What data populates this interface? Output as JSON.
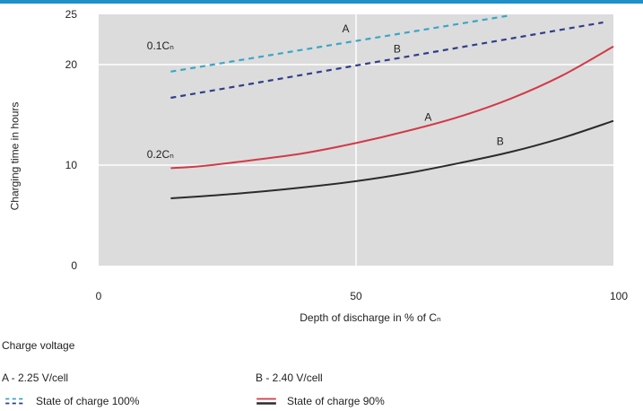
{
  "colors": {
    "top_band": "#1f8fc9",
    "plot_bg": "#dcdcdc",
    "grid": "#ffffff",
    "dashed_a": "#3aa6c8",
    "dashed_b": "#2f3e8c",
    "solid_a": "#d23a48",
    "solid_b": "#2b2b2b"
  },
  "chart_data": {
    "type": "line",
    "xlabel": "Depth of discharge in % of Cₙ",
    "ylabel": "Charging time in hours",
    "xlim": [
      0,
      100
    ],
    "ylim": [
      0,
      25
    ],
    "xticks": [
      "0",
      "50",
      "100"
    ],
    "yticks": [
      "0",
      "10",
      "20",
      "25"
    ],
    "grid": true,
    "series": [
      {
        "group": "0.1Cₙ",
        "name": "A",
        "style": "dashed",
        "color": "#3aa6c8",
        "x": [
          14,
          80
        ],
        "y": [
          19.3,
          24.9
        ]
      },
      {
        "group": "0.1Cₙ",
        "name": "B",
        "style": "dashed",
        "color": "#2f3e8c",
        "x": [
          14,
          98
        ],
        "y": [
          16.7,
          24.2
        ]
      },
      {
        "group": "0.2Cₙ",
        "name": "A",
        "style": "solid",
        "color": "#d23a48",
        "x": [
          14,
          20,
          30,
          40,
          50,
          60,
          70,
          80,
          90,
          100
        ],
        "y": [
          9.7,
          9.9,
          10.5,
          11.2,
          12.2,
          13.4,
          14.8,
          16.6,
          18.9,
          21.8
        ]
      },
      {
        "group": "0.2Cₙ",
        "name": "B",
        "style": "solid",
        "color": "#2b2b2b",
        "x": [
          14,
          20,
          30,
          40,
          50,
          60,
          70,
          80,
          90,
          100
        ],
        "y": [
          6.7,
          6.9,
          7.3,
          7.8,
          8.4,
          9.2,
          10.2,
          11.3,
          12.7,
          14.4
        ]
      }
    ],
    "annotations": [
      {
        "text": "A",
        "x": 48,
        "y": 23.2
      },
      {
        "text": "B",
        "x": 58,
        "y": 21.2
      },
      {
        "text": "A",
        "x": 64,
        "y": 14.4
      },
      {
        "text": "B",
        "x": 78,
        "y": 12.0
      },
      {
        "text": "0.1Cₙ",
        "x": 12,
        "y": 21.5
      },
      {
        "text": "0.2Cₙ",
        "x": 12,
        "y": 10.7
      }
    ]
  },
  "legend": {
    "title": "Charge voltage",
    "a_text": "A - 2.25 V/cell",
    "b_text": "B - 2.40 V/cell",
    "row1_text": "State of charge 100%",
    "row2_text": "State of charge 90%"
  }
}
